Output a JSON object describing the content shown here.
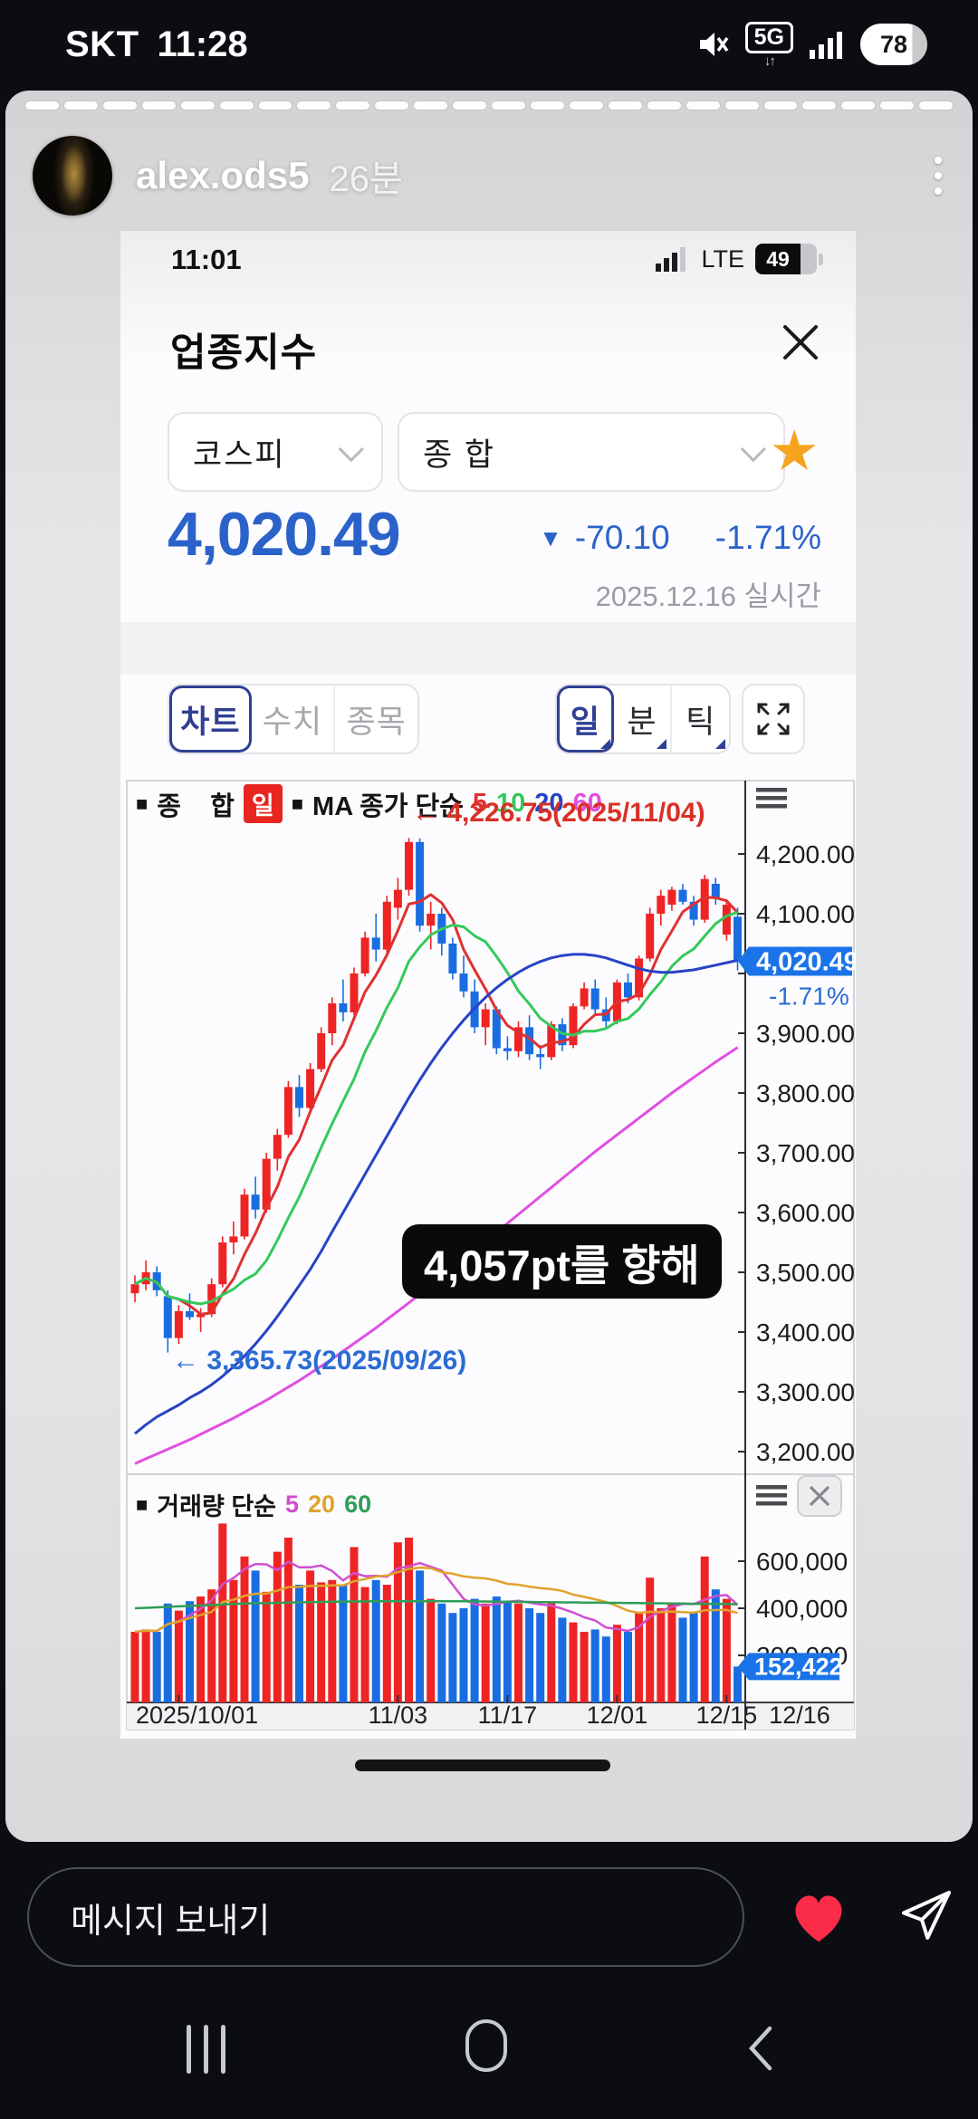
{
  "status_bar": {
    "carrier": "SKT",
    "time": "11:28",
    "network": "5G",
    "battery": "78"
  },
  "story": {
    "username": "alex.ods5",
    "age": "26분",
    "segments": 24
  },
  "phone_status": {
    "time": "11:01",
    "network": "LTE",
    "battery": "49"
  },
  "app": {
    "title": "업종지수",
    "market_dropdown": "코스피",
    "index_dropdown": "종   합",
    "price": "4,020.49",
    "change_arrow": "▼",
    "change": "-70.10",
    "change_pct": "-1.71%",
    "date_line": "2025.12.16 실시간",
    "tabs": [
      {
        "label": "차트"
      },
      {
        "label": "수치"
      },
      {
        "label": "종목"
      }
    ],
    "period_tabs": [
      {
        "label": "일"
      },
      {
        "label": "분"
      },
      {
        "label": "틱"
      }
    ]
  },
  "caption": "4,057pt를 향해",
  "composer": {
    "placeholder": "메시지 보내기"
  },
  "chart_data": {
    "type": "candlestick+volume",
    "legend_main": {
      "marker": "■",
      "series": "종    합",
      "interval_badge": "일",
      "marker2": "■",
      "ma_label": "MA 종가 단순",
      "ma_periods": [
        {
          "p": "5",
          "color": "#e03131"
        },
        {
          "p": "10",
          "color": "#35c95b"
        },
        {
          "p": "20",
          "color": "#2743c7"
        },
        {
          "p": "60",
          "color": "#e14fe1"
        }
      ]
    },
    "legend_volume": {
      "marker": "■",
      "label": "거래량 단순",
      "ma_periods": [
        {
          "p": "5",
          "color": "#cf4fcf"
        },
        {
          "p": "20",
          "color": "#e0a32e"
        },
        {
          "p": "60",
          "color": "#2e9e57"
        }
      ]
    },
    "annotations": {
      "high": "← 4,226.75(2025/11/04)",
      "low": "← 3,365.73(2025/09/26)"
    },
    "price_badge": {
      "value": "4,020.49",
      "pct": "-1.71%",
      "color": "#1a73e8"
    },
    "volume_badge": {
      "value": "152,422",
      "color": "#1a73e8"
    },
    "colors": {
      "up": "#ee2424",
      "down": "#1a6de0"
    },
    "ylim": [
      3150,
      4330
    ],
    "price_ticks": [
      {
        "label": "4,200.00",
        "v": 4200
      },
      {
        "label": "4,100.00",
        "v": 4100
      },
      {
        "label": "3,900.00",
        "v": 3900
      },
      {
        "label": "3,800.00",
        "v": 3800
      },
      {
        "label": "3,700.00",
        "v": 3700
      },
      {
        "label": "3,600.00",
        "v": 3600
      },
      {
        "label": "3,500.00",
        "v": 3500
      },
      {
        "label": "3,400.00",
        "v": 3400
      },
      {
        "label": "3,300.00",
        "v": 3300
      },
      {
        "label": "3,200.00",
        "v": 3200
      }
    ],
    "tick_only": [
      4000
    ],
    "volume_ticks": [
      {
        "label": "600,000",
        "v": 600000
      },
      {
        "label": "400,000",
        "v": 400000
      },
      {
        "label": "200,000",
        "v": 200000
      }
    ],
    "x_ticks": [
      {
        "label": "2025/10/01",
        "i": 4,
        "anchor": "start",
        "tx": 17
      },
      {
        "label": "11/03",
        "i": 24
      },
      {
        "label": "11/17",
        "i": 34
      },
      {
        "label": "12/01",
        "i": 44
      },
      {
        "label": "12/15",
        "i": 54
      }
    ],
    "last_date_label": "12/16",
    "candles": [
      [
        3465,
        3495,
        3450,
        3480
      ],
      [
        3480,
        3520,
        3470,
        3500
      ],
      [
        3500,
        3510,
        3460,
        3470
      ],
      [
        3460,
        3470,
        3365.73,
        3390
      ],
      [
        3390,
        3445,
        3380,
        3435
      ],
      [
        3435,
        3465,
        3420,
        3425
      ],
      [
        3425,
        3440,
        3400,
        3430
      ],
      [
        3430,
        3490,
        3425,
        3480
      ],
      [
        3480,
        3560,
        3475,
        3550
      ],
      [
        3550,
        3585,
        3530,
        3560
      ],
      [
        3560,
        3640,
        3555,
        3630
      ],
      [
        3630,
        3660,
        3590,
        3605
      ],
      [
        3605,
        3700,
        3600,
        3690
      ],
      [
        3690,
        3740,
        3670,
        3730
      ],
      [
        3730,
        3820,
        3725,
        3810
      ],
      [
        3810,
        3830,
        3760,
        3775
      ],
      [
        3775,
        3850,
        3770,
        3840
      ],
      [
        3840,
        3910,
        3835,
        3900
      ],
      [
        3900,
        3960,
        3880,
        3950
      ],
      [
        3950,
        3990,
        3920,
        3935
      ],
      [
        3935,
        4010,
        3930,
        4000
      ],
      [
        4000,
        4070,
        3995,
        4060
      ],
      [
        4060,
        4100,
        4020,
        4040
      ],
      [
        4040,
        4130,
        4035,
        4120
      ],
      [
        4110,
        4160,
        4090,
        4140
      ],
      [
        4140,
        4226.75,
        4130,
        4220
      ],
      [
        4220,
        4226,
        4070,
        4080
      ],
      [
        4080,
        4120,
        4040,
        4100
      ],
      [
        4100,
        4110,
        4030,
        4050
      ],
      [
        4050,
        4060,
        3990,
        4000
      ],
      [
        4000,
        4030,
        3960,
        3970
      ],
      [
        3970,
        3990,
        3900,
        3910
      ],
      [
        3910,
        3950,
        3880,
        3940
      ],
      [
        3940,
        3945,
        3865,
        3875
      ],
      [
        3875,
        3895,
        3855,
        3870
      ],
      [
        3870,
        3920,
        3860,
        3910
      ],
      [
        3910,
        3930,
        3855,
        3865
      ],
      [
        3865,
        3880,
        3840,
        3860
      ],
      [
        3860,
        3920,
        3855,
        3915
      ],
      [
        3915,
        3925,
        3870,
        3880
      ],
      [
        3880,
        3950,
        3875,
        3945
      ],
      [
        3945,
        3985,
        3940,
        3975
      ],
      [
        3975,
        3990,
        3930,
        3940
      ],
      [
        3940,
        3960,
        3910,
        3920
      ],
      [
        3920,
        3990,
        3915,
        3985
      ],
      [
        3985,
        4000,
        3950,
        3960
      ],
      [
        3960,
        4030,
        3955,
        4025
      ],
      [
        4025,
        4110,
        4020,
        4100
      ],
      [
        4100,
        4140,
        4080,
        4130
      ],
      [
        4115,
        4145,
        4105,
        4140
      ],
      [
        4140,
        4150,
        4115,
        4120
      ],
      [
        4120,
        4130,
        4080,
        4090
      ],
      [
        4090,
        4165,
        4085,
        4158
      ],
      [
        4150,
        4160,
        4115,
        4125
      ],
      [
        4065,
        4120,
        4055,
        4115
      ],
      [
        4095,
        4110,
        4005,
        4020.49
      ]
    ],
    "ma20": [
      3230,
      3245,
      3258,
      3268,
      3278,
      3290,
      3300,
      3312,
      3326,
      3342,
      3360,
      3380,
      3402,
      3426,
      3452,
      3478,
      3505,
      3535,
      3568,
      3600,
      3632,
      3664,
      3696,
      3728,
      3760,
      3792,
      3822,
      3850,
      3876,
      3900,
      3922,
      3942,
      3960,
      3976,
      3990,
      4002,
      4012,
      4020,
      4026,
      4030,
      4032,
      4032,
      4030,
      4026,
      4020,
      4014,
      4008,
      4004,
      4002,
      4002,
      4004,
      4006,
      4010,
      4014,
      4018,
      4022
    ],
    "ma60": [
      3180,
      3188,
      3196,
      3204,
      3212,
      3220,
      3229,
      3238,
      3247,
      3256,
      3266,
      3276,
      3286,
      3297,
      3308,
      3319,
      3331,
      3343,
      3355,
      3368,
      3381,
      3394,
      3407,
      3421,
      3435,
      3449,
      3463,
      3477,
      3492,
      3507,
      3522,
      3537,
      3552,
      3567,
      3582,
      3597,
      3612,
      3627,
      3642,
      3657,
      3672,
      3687,
      3702,
      3716,
      3730,
      3744,
      3758,
      3772,
      3786,
      3800,
      3813,
      3826,
      3839,
      3852,
      3864,
      3876
    ],
    "volumes": [
      300000,
      310000,
      300000,
      420000,
      390000,
      430000,
      450000,
      480000,
      760000,
      520000,
      620000,
      560000,
      470000,
      640000,
      700000,
      500000,
      560000,
      510000,
      520000,
      500000,
      660000,
      490000,
      520000,
      500000,
      680000,
      700000,
      560000,
      440000,
      420000,
      380000,
      400000,
      440000,
      420000,
      450000,
      430000,
      420000,
      400000,
      380000,
      430000,
      360000,
      340000,
      300000,
      310000,
      280000,
      330000,
      300000,
      380000,
      530000,
      400000,
      420000,
      360000,
      380000,
      620000,
      480000,
      440000,
      152422
    ],
    "vma60": [
      400000,
      402000,
      404000,
      406000,
      408000,
      410000,
      412000,
      414000,
      416000,
      418000,
      420000,
      421000,
      422000,
      423000,
      424000,
      425000,
      426000,
      427000,
      428000,
      428000,
      429000,
      429000,
      430000,
      430000,
      430000,
      430000,
      430000,
      430000,
      430000,
      430000,
      430000,
      429000,
      429000,
      428000,
      428000,
      427000,
      427000,
      426000,
      426000,
      425000,
      425000,
      424000,
      424000,
      423000,
      423000,
      422000,
      422000,
      421000,
      421000,
      420000,
      420000,
      419000,
      419000,
      418000,
      418000,
      417000
    ]
  }
}
